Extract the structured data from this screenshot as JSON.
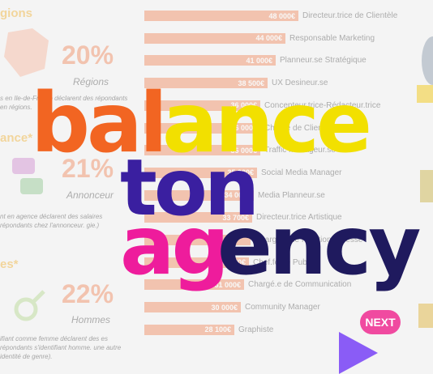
{
  "bars": [
    {
      "value": "48 000€",
      "label": "Directeur.trice de Clientèle",
      "frac": 1.0
    },
    {
      "value": "44 000€",
      "label": "Responsable Marketing",
      "frac": 0.917
    },
    {
      "value": "41 000€",
      "label": "Planneur.se Stratégique",
      "frac": 0.854
    },
    {
      "value": "38 500€",
      "label": "UX Desineur.se",
      "frac": 0.802
    },
    {
      "value": "36 000€",
      "label": "Concepteur.trice-Rédacteur.trice",
      "frac": 0.75
    },
    {
      "value": "36 000€",
      "label": "Chef.fe de Clientèle",
      "frac": 0.75
    },
    {
      "value": "36 000€",
      "label": "Traffic Manageur.se",
      "frac": 0.75
    },
    {
      "value": "35 000€",
      "label": "Social Media Manager",
      "frac": 0.729
    },
    {
      "value": "34 000€",
      "label": "Media Planneur.se",
      "frac": 0.708
    },
    {
      "value": "33 700€",
      "label": "Directeur.trice Artistique",
      "frac": 0.702
    },
    {
      "value": "",
      "label": "Chargé.e de Relations Presse",
      "frac": 0.69
    },
    {
      "value": "32 550€",
      "label": "Chef.fe de Pub",
      "frac": 0.678
    },
    {
      "value": "31 000€",
      "label": "Chargé.e de Communication",
      "frac": 0.646
    },
    {
      "value": "30 000€",
      "label": "Community Manager",
      "frac": 0.625
    },
    {
      "value": "28 100€",
      "label": "Graphiste",
      "frac": 0.585
    }
  ],
  "stats": {
    "head1": "gions",
    "pct1": "20%",
    "cap1": "Régions",
    "txt1": "s en Ile-de-France déclarent des répondants en régions.",
    "head2": "ance*",
    "pct2": "21%",
    "cap2": "Annonceur",
    "txt2": "nt en agence déclarent des salaires répondants chez l'annonceur. gie.)",
    "head3": "es*",
    "pct3": "22%",
    "cap3": "Hommes",
    "txt3": "ifiant comme femme déclarent des es répondants s'identifiant homme. une autre identité de genre)."
  },
  "logo": {
    "line1a": "bal",
    "line1b": "ance",
    "line2": "ton",
    "line3a": "ag",
    "line3b": "ency",
    "colors": {
      "orange": "#f26522",
      "yellow": "#f2e000",
      "indigo": "#3a1fa0",
      "navy": "#1f1a5e",
      "pink": "#ee1c9c",
      "purple": "#6a1fd0"
    }
  },
  "next_label": "NEXT"
}
